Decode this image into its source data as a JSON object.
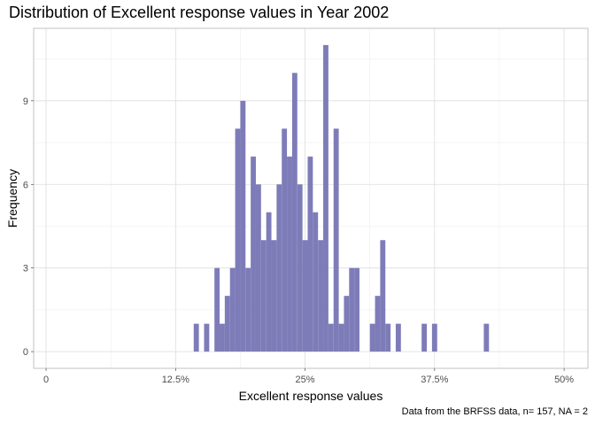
{
  "chart_data": {
    "type": "bar",
    "title": "Distribution of Excellent response values in Year 2002",
    "xlabel": "Excellent response values",
    "ylabel": "Frequency",
    "caption": "Data from the BRFSS data, n= 157, NA = 2",
    "xlim": [
      -1.2,
      52.3
    ],
    "ylim": [
      -0.6,
      11.6
    ],
    "x_ticks": [
      0,
      12.5,
      25,
      37.5,
      50
    ],
    "x_tick_labels": [
      "0",
      "12.5%",
      "25%",
      "37.5%",
      "50%"
    ],
    "y_ticks": [
      0,
      3,
      6,
      9
    ],
    "y_tick_labels": [
      "0",
      "3",
      "6",
      "9"
    ],
    "grid": true,
    "bar_color": "#7e7cb8",
    "bin_width": 0.5,
    "bins": [
      {
        "x": 14.5,
        "count": 1
      },
      {
        "x": 15.5,
        "count": 1
      },
      {
        "x": 16.5,
        "count": 3
      },
      {
        "x": 17.0,
        "count": 1
      },
      {
        "x": 17.5,
        "count": 2
      },
      {
        "x": 18.0,
        "count": 3
      },
      {
        "x": 18.5,
        "count": 8
      },
      {
        "x": 19.0,
        "count": 9
      },
      {
        "x": 19.5,
        "count": 3
      },
      {
        "x": 20.0,
        "count": 7
      },
      {
        "x": 20.5,
        "count": 6
      },
      {
        "x": 21.0,
        "count": 4
      },
      {
        "x": 21.5,
        "count": 5
      },
      {
        "x": 22.0,
        "count": 4
      },
      {
        "x": 22.5,
        "count": 6
      },
      {
        "x": 23.0,
        "count": 8
      },
      {
        "x": 23.5,
        "count": 7
      },
      {
        "x": 24.0,
        "count": 10
      },
      {
        "x": 24.5,
        "count": 6
      },
      {
        "x": 25.0,
        "count": 4
      },
      {
        "x": 25.5,
        "count": 7
      },
      {
        "x": 26.0,
        "count": 5
      },
      {
        "x": 26.5,
        "count": 4
      },
      {
        "x": 27.0,
        "count": 11
      },
      {
        "x": 27.5,
        "count": 1
      },
      {
        "x": 28.0,
        "count": 8
      },
      {
        "x": 28.5,
        "count": 1
      },
      {
        "x": 29.0,
        "count": 2
      },
      {
        "x": 29.5,
        "count": 3
      },
      {
        "x": 30.0,
        "count": 3
      },
      {
        "x": 31.5,
        "count": 1
      },
      {
        "x": 32.0,
        "count": 2
      },
      {
        "x": 32.5,
        "count": 4
      },
      {
        "x": 33.0,
        "count": 1
      },
      {
        "x": 34.0,
        "count": 1
      },
      {
        "x": 36.5,
        "count": 1
      },
      {
        "x": 37.5,
        "count": 1
      },
      {
        "x": 42.5,
        "count": 1
      }
    ]
  }
}
